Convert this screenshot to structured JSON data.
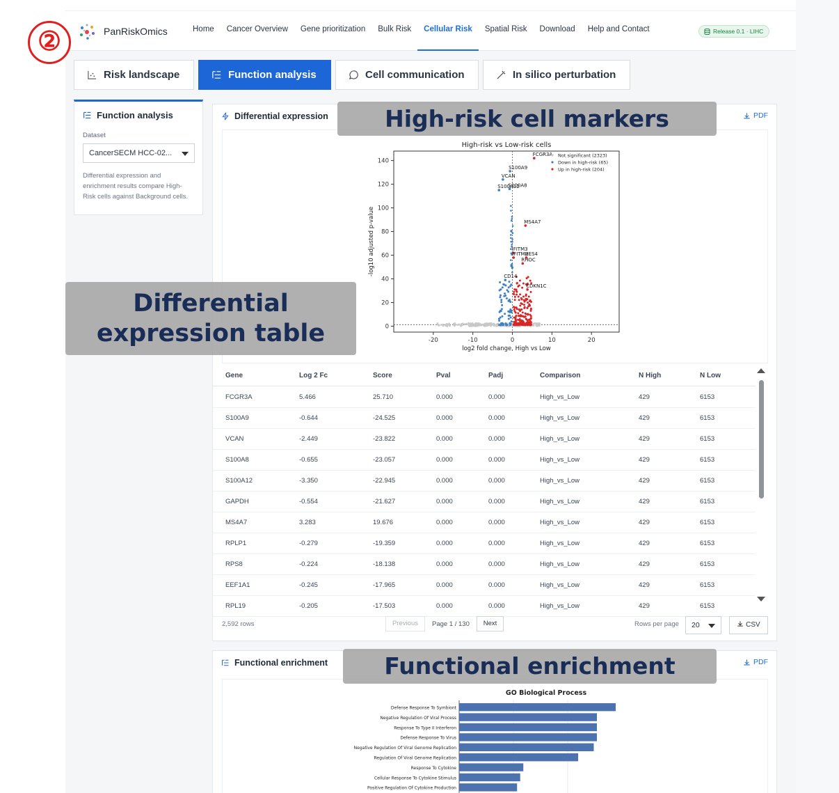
{
  "brand": "PanRiskOmics",
  "nav": [
    "Home",
    "Cancer Overview",
    "Gene prioritization",
    "Bulk Risk",
    "Cellular Risk",
    "Spatial Risk",
    "Download",
    "Help and Contact"
  ],
  "nav_active": "Cellular Risk",
  "release": "Release 0.1 · LIHC",
  "step_badge": "②",
  "tabs": [
    {
      "label": "Risk landscape",
      "icon": "scatter-chart-icon"
    },
    {
      "label": "Function analysis",
      "icon": "list-tree-icon",
      "active": true
    },
    {
      "label": "Cell communication",
      "icon": "chat-bubble-icon"
    },
    {
      "label": "In silico perturbation",
      "icon": "magic-wand-icon"
    }
  ],
  "sidebar": {
    "title": "Function analysis",
    "dataset_label": "Dataset",
    "dataset_value": "CancerSECM HCC-02...",
    "note": "Differential expression and enrichment results compare High-Risk cells against Background cells."
  },
  "de_panel": {
    "title": "Differential expression",
    "pdf": "PDF"
  },
  "callouts": {
    "markers": "High-risk cell markers",
    "table": "Differential expression table",
    "enrichment": "Functional enrichment"
  },
  "table": {
    "columns": [
      "Gene",
      "Log 2 Fc",
      "Score",
      "Pval",
      "Padj",
      "Comparison",
      "N High",
      "N Low"
    ],
    "rows": [
      [
        "FCGR3A",
        "5.466",
        "25.710",
        "0.000",
        "0.000",
        "High_vs_Low",
        "429",
        "6153"
      ],
      [
        "S100A9",
        "-0.644",
        "-24.525",
        "0.000",
        "0.000",
        "High_vs_Low",
        "429",
        "6153"
      ],
      [
        "VCAN",
        "-2.449",
        "-23.822",
        "0.000",
        "0.000",
        "High_vs_Low",
        "429",
        "6153"
      ],
      [
        "S100A8",
        "-0.655",
        "-23.057",
        "0.000",
        "0.000",
        "High_vs_Low",
        "429",
        "6153"
      ],
      [
        "S100A12",
        "-3.350",
        "-22.945",
        "0.000",
        "0.000",
        "High_vs_Low",
        "429",
        "6153"
      ],
      [
        "GAPDH",
        "-0.554",
        "-21.627",
        "0.000",
        "0.000",
        "High_vs_Low",
        "429",
        "6153"
      ],
      [
        "MS4A7",
        "3.283",
        "19.676",
        "0.000",
        "0.000",
        "High_vs_Low",
        "429",
        "6153"
      ],
      [
        "RPLP1",
        "-0.279",
        "-19.359",
        "0.000",
        "0.000",
        "High_vs_Low",
        "429",
        "6153"
      ],
      [
        "RPS8",
        "-0.224",
        "-18.138",
        "0.000",
        "0.000",
        "High_vs_Low",
        "429",
        "6153"
      ],
      [
        "EEF1A1",
        "-0.245",
        "-17.965",
        "0.000",
        "0.000",
        "High_vs_Low",
        "429",
        "6153"
      ],
      [
        "RPL19",
        "-0.205",
        "-17.503",
        "0.000",
        "0.000",
        "High_vs_Low",
        "429",
        "6153"
      ]
    ],
    "row_count": "2,592 rows",
    "prev": "Previous",
    "page_info": "Page 1 / 130",
    "next": "Next",
    "rows_per_page_label": "Rows per page",
    "rows_per_page": "20",
    "csv": "CSV"
  },
  "fe_panel": {
    "title": "Functional enrichment",
    "pdf": "PDF"
  },
  "chart_data": [
    {
      "type": "scatter",
      "title": "High-risk vs Low-risk cells",
      "xlabel": "log2 fold change, High vs Low",
      "ylabel": "-log10 adjusted p-value",
      "xlim": [
        -30,
        27
      ],
      "ylim": [
        -5,
        148
      ],
      "xticks": [
        -20,
        -10,
        0,
        10,
        20
      ],
      "yticks": [
        0,
        20,
        40,
        60,
        80,
        100,
        120,
        140
      ],
      "legend": [
        "Not significant (2323)",
        "Down in high-risk (65)",
        "Up in high-risk (204)"
      ],
      "legend_placement": "top-right",
      "colors": {
        "ns": "#c8c8c8",
        "down": "#3b82c4",
        "up": "#d62728"
      },
      "labeled_points": [
        {
          "gene": "FCGR3A",
          "x": 5.5,
          "y": 142
        },
        {
          "gene": "S100A9",
          "x": -0.6,
          "y": 131
        },
        {
          "gene": "VCAN",
          "x": -2.4,
          "y": 124
        },
        {
          "gene": "S100A8",
          "x": -0.7,
          "y": 116
        },
        {
          "gene": "S100A12",
          "x": -3.4,
          "y": 115
        },
        {
          "gene": "MS4A7",
          "x": 3.3,
          "y": 85
        },
        {
          "gene": "IFITM3",
          "x": 0.2,
          "y": 62
        },
        {
          "gene": "IFITM2",
          "x": 0.3,
          "y": 58
        },
        {
          "gene": "HES4",
          "x": 3.5,
          "y": 58
        },
        {
          "gene": "RHOC",
          "x": 2.6,
          "y": 53
        },
        {
          "gene": "CD14",
          "x": -1.8,
          "y": 39
        },
        {
          "gene": "CDKN1C",
          "x": 3.8,
          "y": 31
        }
      ]
    },
    {
      "type": "bar",
      "title": "GO Biological Process",
      "orientation": "horizontal",
      "categories": [
        "Defense Response To Symbiont",
        "Negative Regulation Of Viral Process",
        "Response To Type II Interferon",
        "Defense Response To Virus",
        "Negative Regulation Of Viral Genome Replication",
        "Regulation Of Viral Genome Replication",
        "Response To Cytokine",
        "Cellular Response To Cytokine Stimulus",
        "Positive Regulation Of Cytokine Production"
      ],
      "values": [
        10.0,
        8.8,
        8.8,
        8.8,
        8.6,
        7.6,
        4.1,
        3.9,
        3.7
      ],
      "color": "#4c72b0"
    }
  ]
}
